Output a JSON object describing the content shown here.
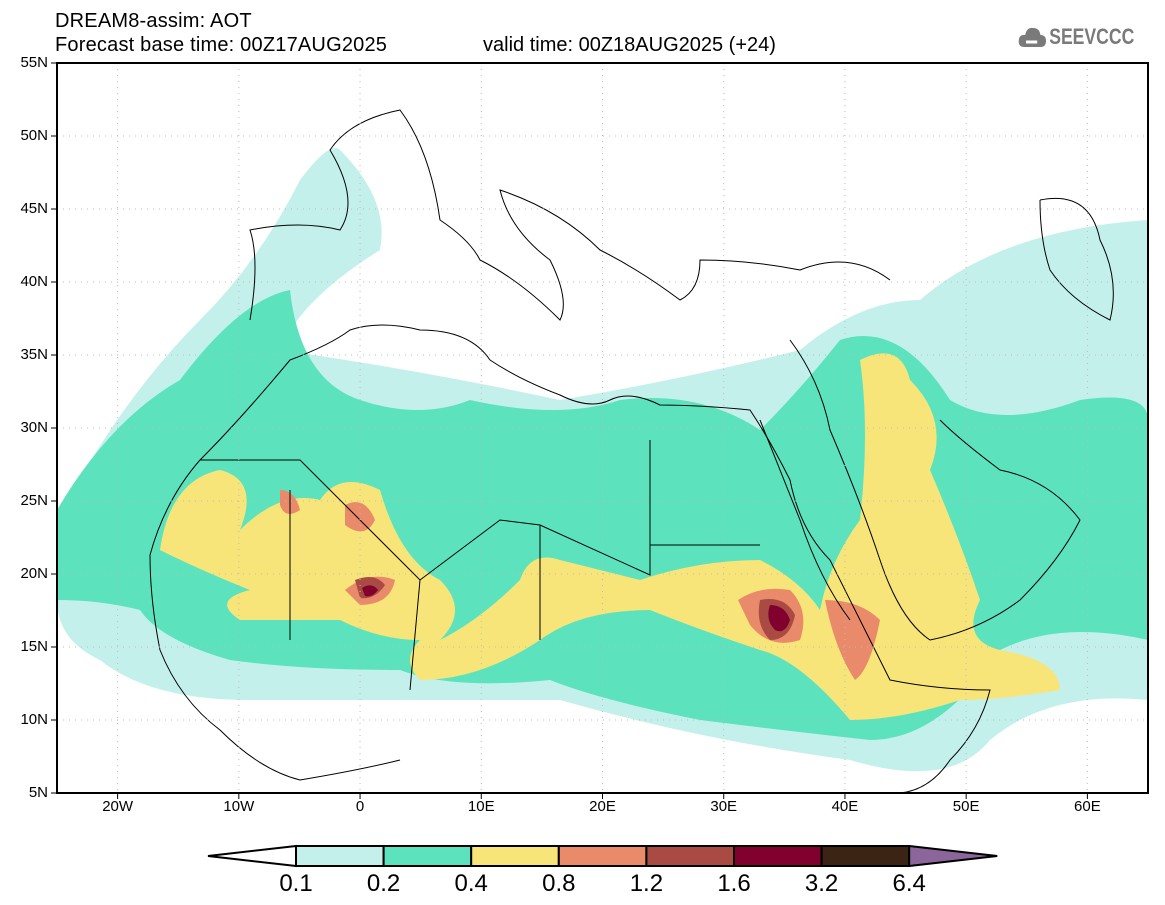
{
  "header": {
    "title": "DREAM8-assim: AOT",
    "base_time": "Forecast base time: 00Z17AUG2025",
    "valid_time": "valid time: 00Z18AUG2025 (+24)",
    "logo_text": "SEEVCCC"
  },
  "map": {
    "lon_range": [
      -25,
      65
    ],
    "lat_range": [
      5,
      55
    ],
    "lat_labels": [
      "55N",
      "50N",
      "45N",
      "40N",
      "35N",
      "30N",
      "25N",
      "20N",
      "15N",
      "10N",
      "5N"
    ],
    "lon_labels": [
      "20W",
      "10W",
      "0",
      "10E",
      "20E",
      "30E",
      "40E",
      "50E",
      "60E"
    ]
  },
  "legend": {
    "levels": [
      "0.1",
      "0.2",
      "0.4",
      "0.8",
      "1.2",
      "1.6",
      "3.2",
      "6.4"
    ],
    "colors": [
      "#ffffff",
      "#c4f0ec",
      "#5ce3bd",
      "#f8e57a",
      "#e98a6a",
      "#a94b42",
      "#82002d",
      "#3b2414",
      "#8c659a"
    ]
  }
}
